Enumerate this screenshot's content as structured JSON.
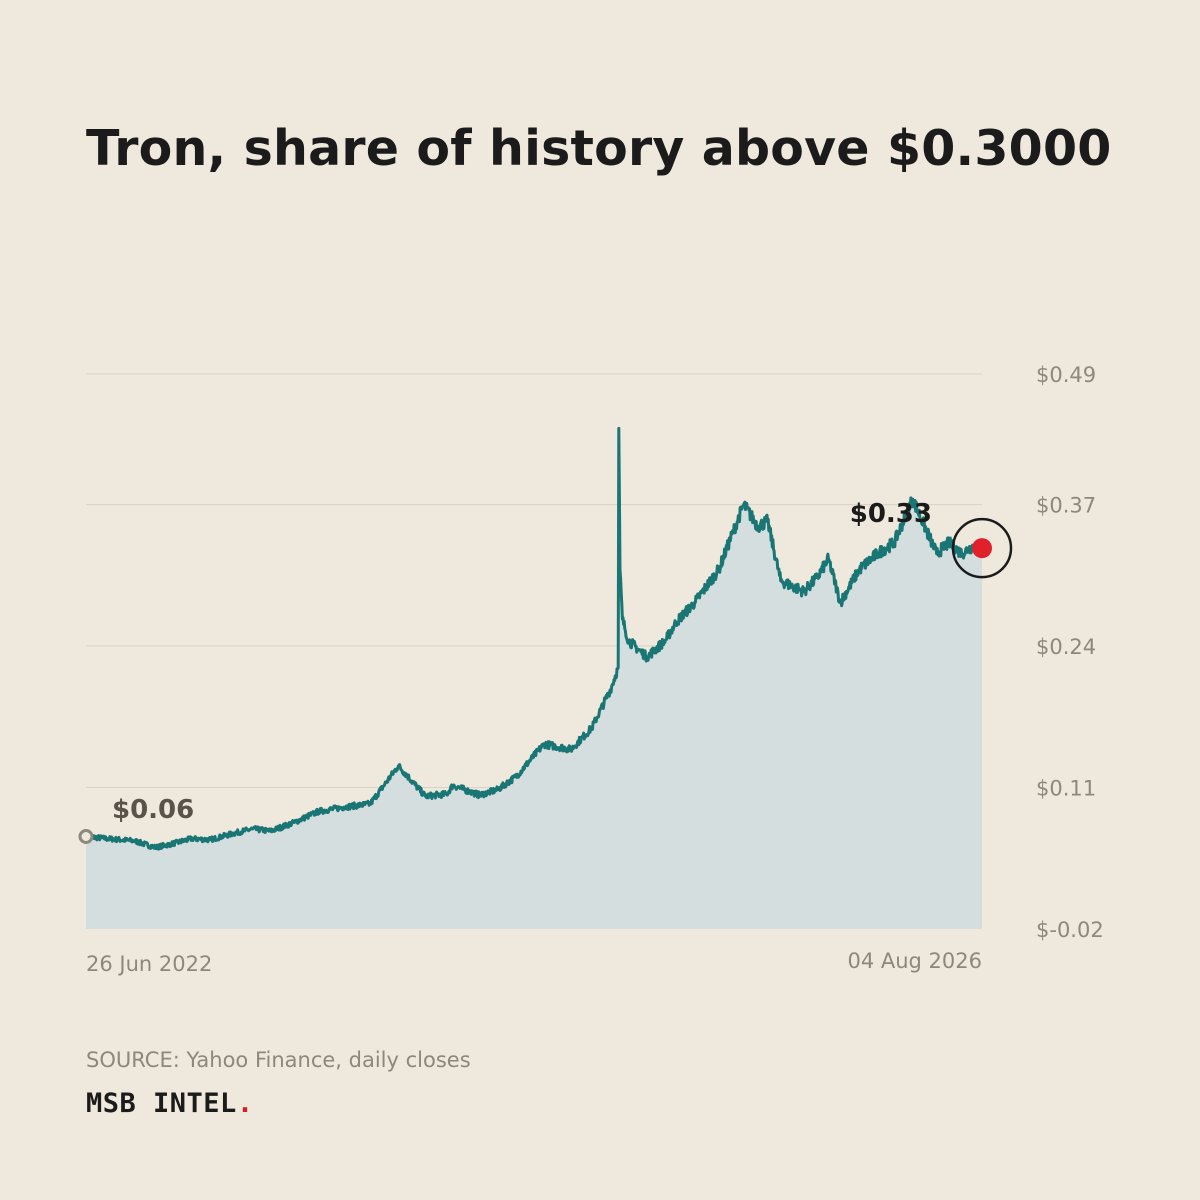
{
  "header": {
    "title": "Tron, share of history above $0.3000"
  },
  "footer": {
    "source": "SOURCE: Yahoo Finance, daily closes",
    "brand": "MSB INTEL",
    "brand_dot": "."
  },
  "colors": {
    "background": "#efe8dc",
    "line": "#1a7575",
    "area": "#d5dedf",
    "gridline": "#d9d2c6",
    "highlight": "#e0202a",
    "start_marker": "#8e877d"
  },
  "chart_data": {
    "type": "area",
    "title": "Tron, share of history above $0.3000",
    "xlabel": "",
    "ylabel": "",
    "x_range": [
      "2022-06-26",
      "2026-08-04"
    ],
    "ylim": [
      -0.02,
      0.49
    ],
    "y_ticks": [
      "$0.49",
      "$0.37",
      "$0.24",
      "$0.11",
      "$-0.02"
    ],
    "y_tick_values": [
      0.49,
      0.37,
      0.24,
      0.11,
      -0.02
    ],
    "x_tick_labels": [
      "26 Jun 2022",
      "04 Aug 2026"
    ],
    "grid": true,
    "series": [
      {
        "x": [
          "2022-06-26",
          "2022-08-01",
          "2022-09-15",
          "2022-10-20",
          "2022-11-15",
          "2022-12-20",
          "2023-01-20",
          "2023-03-01",
          "2023-04-01",
          "2023-05-01",
          "2023-06-10",
          "2023-07-20",
          "2023-09-01",
          "2023-10-15",
          "2023-12-01",
          "2024-01-15",
          "2024-02-20",
          "2024-03-01",
          "2024-04-15",
          "2024-05-15",
          "2024-06-15",
          "2024-08-01",
          "2024-09-15",
          "2024-10-20",
          "2024-11-20",
          "2024-12-03",
          "2024-12-04",
          "2024-12-06",
          "2024-12-10",
          "2024-12-20",
          "2025-01-20",
          "2025-02-20",
          "2025-03-10",
          "2025-04-10",
          "2025-05-20",
          "2025-07-01",
          "2025-07-25",
          "2025-08-10",
          "2025-09-01",
          "2025-10-10",
          "2025-11-01",
          "2025-11-20",
          "2025-12-10",
          "2026-01-10",
          "2026-02-10",
          "2026-03-10",
          "2026-04-10",
          "2026-05-20",
          "2026-06-10",
          "2026-07-01",
          "2026-07-20",
          "2026-08-04"
        ],
        "y": [
          0.065,
          0.063,
          0.061,
          0.055,
          0.058,
          0.063,
          0.062,
          0.068,
          0.072,
          0.07,
          0.078,
          0.088,
          0.092,
          0.095,
          0.13,
          0.102,
          0.104,
          0.112,
          0.103,
          0.108,
          0.12,
          0.15,
          0.145,
          0.165,
          0.2,
          0.22,
          0.44,
          0.31,
          0.265,
          0.245,
          0.23,
          0.245,
          0.262,
          0.28,
          0.31,
          0.37,
          0.35,
          0.355,
          0.3,
          0.29,
          0.303,
          0.32,
          0.28,
          0.31,
          0.325,
          0.335,
          0.375,
          0.325,
          0.335,
          0.325,
          0.332,
          0.33
        ]
      }
    ],
    "annotations": [
      {
        "label": "$0.06",
        "x": "2022-06-26",
        "y": 0.06,
        "role": "start"
      },
      {
        "label": "$0.33",
        "x": "2026-08-04",
        "y": 0.33,
        "role": "end"
      }
    ]
  }
}
